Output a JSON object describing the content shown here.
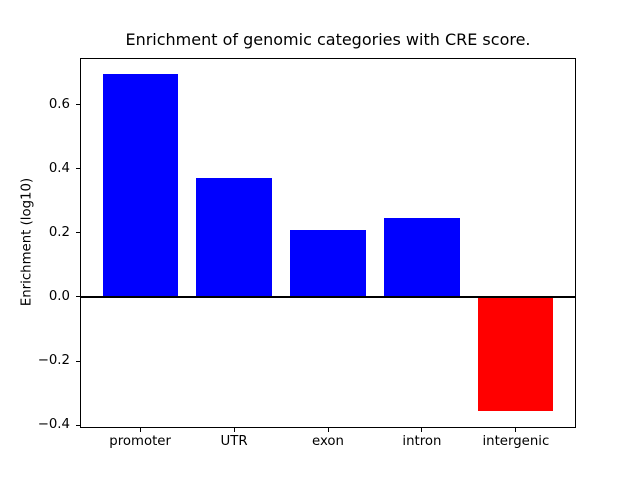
{
  "chart_data": {
    "type": "bar",
    "title": "Enrichment of genomic categories with CRE score.",
    "ylabel": "Enrichment (log10)",
    "xlabel": "",
    "categories": [
      "promoter",
      "UTR",
      "exon",
      "intron",
      "intergenic"
    ],
    "values": [
      0.695,
      0.37,
      0.21,
      0.245,
      -0.355
    ],
    "bar_colors": [
      "#0000ff",
      "#0000ff",
      "#0000ff",
      "#0000ff",
      "#ff0000"
    ],
    "positive_color": "#0000ff",
    "negative_color": "#ff0000",
    "zero_line_color": "#000000",
    "ylim": [
      -0.4075,
      0.7475
    ],
    "yticks": [
      {
        "value": -0.4,
        "label": "−0.4"
      },
      {
        "value": -0.2,
        "label": "−0.2"
      },
      {
        "value": 0.0,
        "label": "0.0"
      },
      {
        "value": 0.2,
        "label": "0.2"
      },
      {
        "value": 0.4,
        "label": "0.4"
      },
      {
        "value": 0.6,
        "label": "0.6"
      }
    ],
    "bar_width_fraction": 0.8,
    "grid": false,
    "legend": null,
    "zero_line": true
  }
}
